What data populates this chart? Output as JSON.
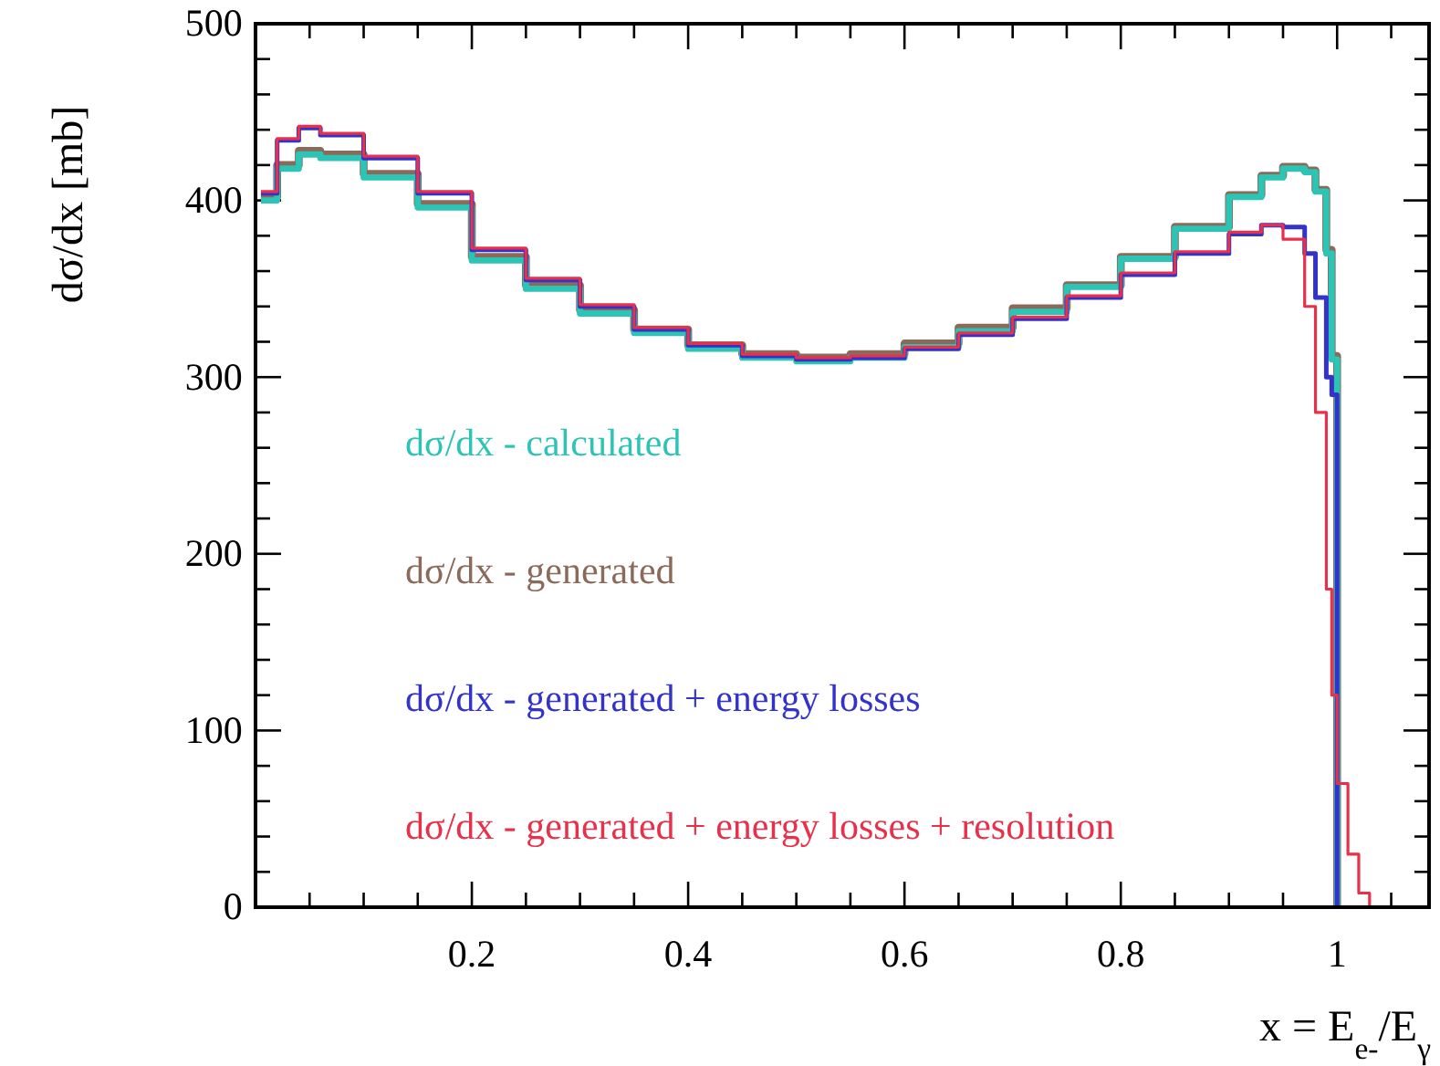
{
  "chart_data": {
    "type": "step",
    "xlabel": "x = E$_{e-}$/E$_{γ}$",
    "ylabel": "dσ/dx [mb]",
    "x": [
      0.005,
      0.02,
      0.04,
      0.06,
      0.1,
      0.15,
      0.2,
      0.25,
      0.3,
      0.35,
      0.4,
      0.45,
      0.5,
      0.55,
      0.6,
      0.65,
      0.7,
      0.75,
      0.8,
      0.85,
      0.9,
      0.93,
      0.95,
      0.97,
      0.98,
      0.99,
      0.995,
      1.0,
      1.01,
      1.02,
      1.03
    ],
    "series": [
      {
        "name": "dσ/dx - generated",
        "color": "#8b6a5a",
        "values": [
          402,
          420,
          428,
          426,
          415,
          398,
          368,
          352,
          338,
          327,
          318,
          313,
          311,
          313,
          319,
          328,
          339,
          352,
          368,
          385,
          403,
          414,
          419,
          417,
          406,
          372,
          312,
          0,
          null,
          null,
          null
        ]
      },
      {
        "name": "dσ/dx - calculated",
        "color": "#2cc4b4",
        "values": [
          400,
          418,
          426,
          424,
          413,
          396,
          366,
          350,
          336,
          325,
          316,
          311,
          309,
          311,
          317,
          326,
          337,
          351,
          367,
          384,
          402,
          413,
          418,
          416,
          405,
          370,
          310,
          0,
          null,
          null,
          null
        ]
      },
      {
        "name": "dσ/dx - generated + energy losses",
        "color": "#3333cc",
        "values": [
          404,
          434,
          441,
          437,
          424,
          404,
          372,
          355,
          340,
          327,
          318,
          312,
          310,
          311,
          316,
          324,
          333,
          345,
          358,
          370,
          381,
          386,
          385,
          370,
          345,
          300,
          290,
          0,
          null,
          null,
          null
        ]
      },
      {
        "name": "dσ/dx - generated + energy losses + resolution",
        "color": "#e8304a",
        "values": [
          405,
          435,
          442,
          438,
          425,
          405,
          373,
          356,
          341,
          328,
          319,
          313,
          311,
          312,
          317,
          325,
          334,
          346,
          359,
          371,
          382,
          386,
          378,
          340,
          280,
          180,
          120,
          70,
          30,
          8,
          0
        ]
      }
    ],
    "xlim": [
      0,
      1.085
    ],
    "xticks": [
      {
        "value": 0.05,
        "label": null
      },
      {
        "value": 0.1,
        "label": null
      },
      {
        "value": 0.15,
        "label": null
      },
      {
        "value": 0.2,
        "label": "0.2"
      },
      {
        "value": 0.25,
        "label": null
      },
      {
        "value": 0.3,
        "label": null
      },
      {
        "value": 0.35,
        "label": null
      },
      {
        "value": 0.4,
        "label": "0.4"
      },
      {
        "value": 0.45,
        "label": null
      },
      {
        "value": 0.5,
        "label": null
      },
      {
        "value": 0.55,
        "label": null
      },
      {
        "value": 0.6,
        "label": "0.6"
      },
      {
        "value": 0.65,
        "label": null
      },
      {
        "value": 0.7,
        "label": null
      },
      {
        "value": 0.75,
        "label": null
      },
      {
        "value": 0.8,
        "label": "0.8"
      },
      {
        "value": 0.85,
        "label": null
      },
      {
        "value": 0.9,
        "label": null
      },
      {
        "value": 0.95,
        "label": null
      },
      {
        "value": 1,
        "label": "1"
      },
      {
        "value": 1.05,
        "label": null
      }
    ],
    "ylim": [
      0,
      500
    ],
    "yticks": [
      0,
      {
        "value": 20,
        "label": null
      },
      {
        "value": 40,
        "label": null
      },
      {
        "value": 60,
        "label": null
      },
      {
        "value": 80,
        "label": null
      },
      100,
      {
        "value": 120,
        "label": null
      },
      {
        "value": 140,
        "label": null
      },
      {
        "value": 160,
        "label": null
      },
      {
        "value": 180,
        "label": null
      },
      200,
      {
        "value": 220,
        "label": null
      },
      {
        "value": 240,
        "label": null
      },
      {
        "value": 260,
        "label": null
      },
      {
        "value": 280,
        "label": null
      },
      300,
      {
        "value": 320,
        "label": null
      },
      {
        "value": 340,
        "label": null
      },
      {
        "value": 360,
        "label": null
      },
      {
        "value": 380,
        "label": null
      },
      400,
      {
        "value": 420,
        "label": null
      },
      {
        "value": 440,
        "label": null
      },
      {
        "value": 460,
        "label": null
      },
      {
        "value": 480,
        "label": null
      },
      500
    ],
    "grid": false
  }
}
